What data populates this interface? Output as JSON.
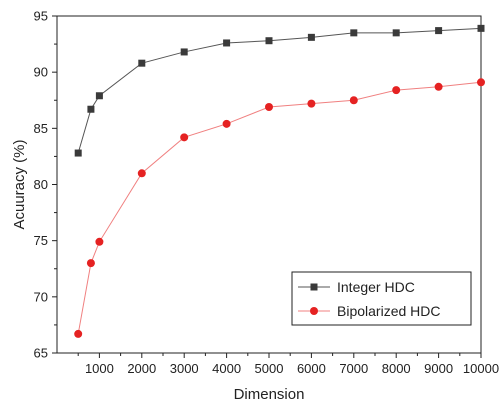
{
  "chart_data": {
    "type": "line",
    "title": "",
    "xlabel": "Dimension",
    "ylabel": "Acuuracy (%)",
    "xlim": [
      0,
      10000
    ],
    "ylim": [
      65,
      95
    ],
    "xticks": [
      1000,
      2000,
      3000,
      4000,
      5000,
      6000,
      7000,
      8000,
      9000,
      10000
    ],
    "xtick_labels": [
      "1000",
      "2000",
      "3000",
      "4000",
      "5000",
      "6000",
      "7000",
      "8000",
      "9000",
      "10000"
    ],
    "yticks": [
      65,
      70,
      75,
      80,
      85,
      90,
      95
    ],
    "ytick_labels": [
      "65",
      "70",
      "75",
      "80",
      "85",
      "90",
      "95"
    ],
    "grid": false,
    "legend_position": "bottom-right",
    "x": [
      500,
      800,
      1000,
      2000,
      3000,
      4000,
      5000,
      6000,
      7000,
      8000,
      9000,
      10000
    ],
    "series": [
      {
        "name": "Integer HDC",
        "marker": "square",
        "color": "#555555",
        "marker_color": "#3a3a3a",
        "values": [
          82.8,
          86.7,
          87.9,
          90.8,
          91.8,
          92.6,
          92.8,
          93.1,
          93.5,
          93.5,
          93.7,
          93.9
        ]
      },
      {
        "name": "Bipolarized HDC",
        "marker": "circle",
        "color": "#f08080",
        "marker_color": "#e52222",
        "values": [
          66.7,
          73.0,
          74.9,
          81.0,
          84.2,
          85.4,
          86.9,
          87.2,
          87.5,
          88.4,
          88.7,
          89.1
        ]
      }
    ]
  }
}
